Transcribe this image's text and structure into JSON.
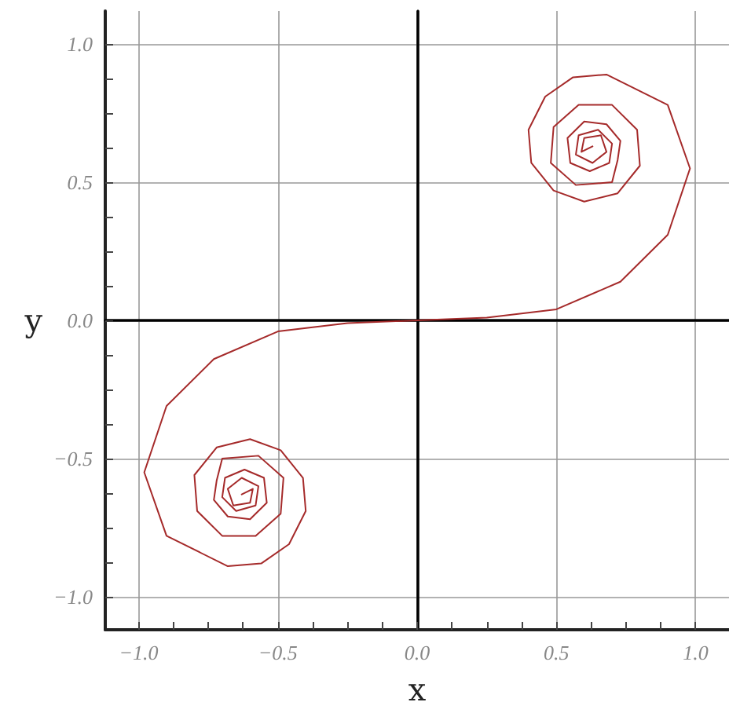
{
  "chart_data": {
    "type": "line",
    "xlabel": "x",
    "ylabel": "y",
    "x": [
      -0.63,
      -0.59,
      -0.6,
      -0.66,
      -0.68,
      -0.63,
      -0.57,
      -0.58,
      -0.65,
      -0.7,
      -0.69,
      -0.62,
      -0.55,
      -0.54,
      -0.6,
      -0.68,
      -0.73,
      -0.72,
      -0.7,
      -0.57,
      -0.48,
      -0.49,
      -0.58,
      -0.7,
      -0.79,
      -0.8,
      -0.72,
      -0.6,
      -0.49,
      -0.41,
      -0.4,
      -0.46,
      -0.56,
      -0.68,
      -0.9,
      -0.98,
      -0.9,
      -0.73,
      -0.5,
      -0.25,
      0,
      0.25,
      0.5,
      0.73,
      0.9,
      0.98,
      0.9,
      0.68,
      0.56,
      0.46,
      0.4,
      0.41,
      0.49,
      0.6,
      0.72,
      0.8,
      0.79,
      0.7,
      0.58,
      0.49,
      0.48,
      0.57,
      0.7,
      0.72,
      0.73,
      0.68,
      0.6,
      0.54,
      0.55,
      0.62,
      0.69,
      0.7,
      0.65,
      0.58,
      0.57,
      0.63,
      0.68,
      0.66,
      0.6,
      0.59,
      0.63
    ],
    "series": [
      {
        "color": "#a52a2a",
        "values": [
          -0.63,
          -0.61,
          -0.66,
          -0.67,
          -0.61,
          -0.57,
          -0.6,
          -0.67,
          -0.69,
          -0.64,
          -0.57,
          -0.54,
          -0.57,
          -0.66,
          -0.72,
          -0.71,
          -0.65,
          -0.58,
          -0.5,
          -0.49,
          -0.57,
          -0.7,
          -0.78,
          -0.78,
          -0.69,
          -0.56,
          -0.46,
          -0.43,
          -0.47,
          -0.57,
          -0.69,
          -0.81,
          -0.88,
          -0.89,
          -0.78,
          -0.55,
          -0.31,
          -0.14,
          -0.04,
          -0.01,
          0,
          0.01,
          0.04,
          0.14,
          0.31,
          0.55,
          0.78,
          0.89,
          0.88,
          0.81,
          0.69,
          0.57,
          0.47,
          0.43,
          0.46,
          0.56,
          0.69,
          0.78,
          0.78,
          0.7,
          0.57,
          0.49,
          0.5,
          0.58,
          0.65,
          0.71,
          0.72,
          0.66,
          0.57,
          0.54,
          0.57,
          0.64,
          0.69,
          0.67,
          0.6,
          0.57,
          0.61,
          0.67,
          0.66,
          0.61,
          0.63
        ]
      }
    ],
    "xlim": [
      -1.12,
      1.12
    ],
    "ylim": [
      -1.12,
      1.12
    ],
    "xticks": [
      {
        "value": -1.0,
        "label": "−1.0"
      },
      {
        "value": -0.875,
        "label": null
      },
      {
        "value": -0.75,
        "label": null
      },
      {
        "value": -0.625,
        "label": null
      },
      {
        "value": -0.5,
        "label": "−0.5"
      },
      {
        "value": -0.375,
        "label": null
      },
      {
        "value": -0.25,
        "label": null
      },
      {
        "value": -0.125,
        "label": null
      },
      {
        "value": 0,
        "label": "0.0"
      },
      {
        "value": 0.125,
        "label": null
      },
      {
        "value": 0.25,
        "label": null
      },
      {
        "value": 0.375,
        "label": null
      },
      {
        "value": 0.5,
        "label": "0.5"
      },
      {
        "value": 0.625,
        "label": null
      },
      {
        "value": 0.75,
        "label": null
      },
      {
        "value": 0.875,
        "label": null
      },
      {
        "value": 1.0,
        "label": "1.0"
      }
    ],
    "yticks": [
      {
        "value": -1.0,
        "label": "−1.0"
      },
      {
        "value": -0.875,
        "label": null
      },
      {
        "value": -0.75,
        "label": null
      },
      {
        "value": -0.625,
        "label": null
      },
      {
        "value": -0.5,
        "label": "−0.5"
      },
      {
        "value": -0.375,
        "label": null
      },
      {
        "value": -0.25,
        "label": null
      },
      {
        "value": -0.125,
        "label": null
      },
      {
        "value": 0,
        "label": "0.0"
      },
      {
        "value": 0.125,
        "label": null
      },
      {
        "value": 0.25,
        "label": null
      },
      {
        "value": 0.375,
        "label": null
      },
      {
        "value": 0.5,
        "label": "0.5"
      },
      {
        "value": 0.625,
        "label": null
      },
      {
        "value": 0.75,
        "label": null
      },
      {
        "value": 0.875,
        "label": null
      },
      {
        "value": 1.0,
        "label": "1.0"
      }
    ],
    "grid": true,
    "marker": "none",
    "line_style": "solid"
  }
}
